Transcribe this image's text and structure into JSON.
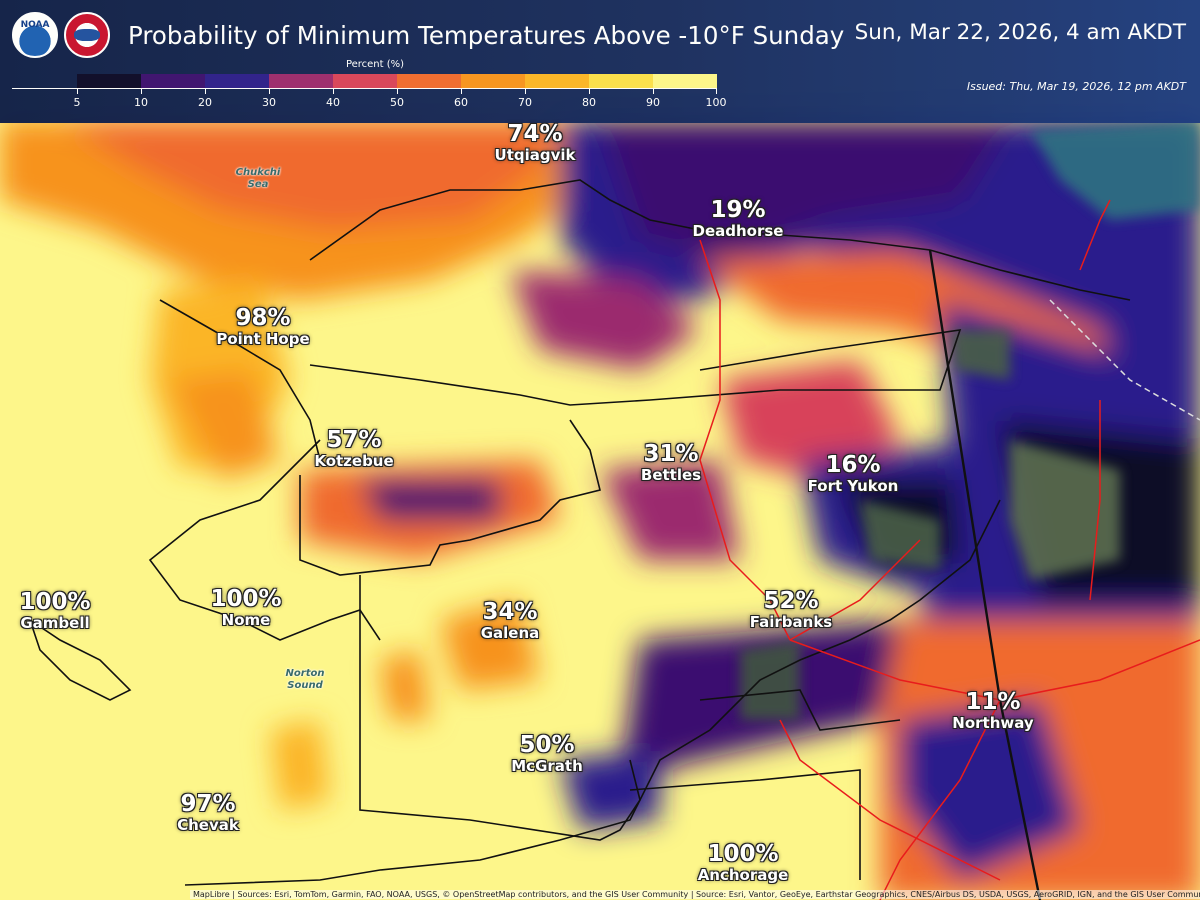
{
  "header": {
    "title": "Probability of Minimum Temperatures Above -10°F Sunday",
    "valid_time": "Sun, Mar 22, 2026, 4 am AKDT",
    "issued": "Issued: Thu, Mar 19, 2026, 12 pm AKDT",
    "noaa_logo_text": "NOAA"
  },
  "legend": {
    "title": "Percent (%)",
    "ticks": [
      "5",
      "10",
      "20",
      "30",
      "40",
      "50",
      "60",
      "70",
      "80",
      "90",
      "100"
    ],
    "colors": [
      "#0b0928",
      "#3b0f70",
      "#2c1e8c",
      "#9b2a6e",
      "#d8435a",
      "#f06a2f",
      "#f7931e",
      "#fbb526",
      "#fbe04a",
      "#fdf68a"
    ]
  },
  "locations": [
    {
      "name": "Utqiagvik",
      "value": "74%"
    },
    {
      "name": "Deadhorse",
      "value": "19%"
    },
    {
      "name": "Point Hope",
      "value": "98%"
    },
    {
      "name": "Kotzebue",
      "value": "57%"
    },
    {
      "name": "Bettles",
      "value": "31%"
    },
    {
      "name": "Fort Yukon",
      "value": "16%"
    },
    {
      "name": "Gambell",
      "value": "100%"
    },
    {
      "name": "Nome",
      "value": "100%"
    },
    {
      "name": "Galena",
      "value": "34%"
    },
    {
      "name": "Fairbanks",
      "value": "52%"
    },
    {
      "name": "Northway",
      "value": "11%"
    },
    {
      "name": "McGrath",
      "value": "50%"
    },
    {
      "name": "Chevak",
      "value": "97%"
    },
    {
      "name": "Anchorage",
      "value": "100%"
    }
  ],
  "water_labels": [
    {
      "line1": "Chukchi",
      "line2": "Sea"
    },
    {
      "line1": "Norton",
      "line2": "Sound"
    }
  ],
  "attribution": "MapLibre | Sources: Esri, TomTom, Garmin, FAO, NOAA, USGS, © OpenStreetMap contributors, and the GIS User Community | Source: Esri, Vantor, GeoEye, Earthstar Geographics, CNES/Airbus DS, USDA, USGS, AeroGRID, IGN, and the GIS User Community"
}
